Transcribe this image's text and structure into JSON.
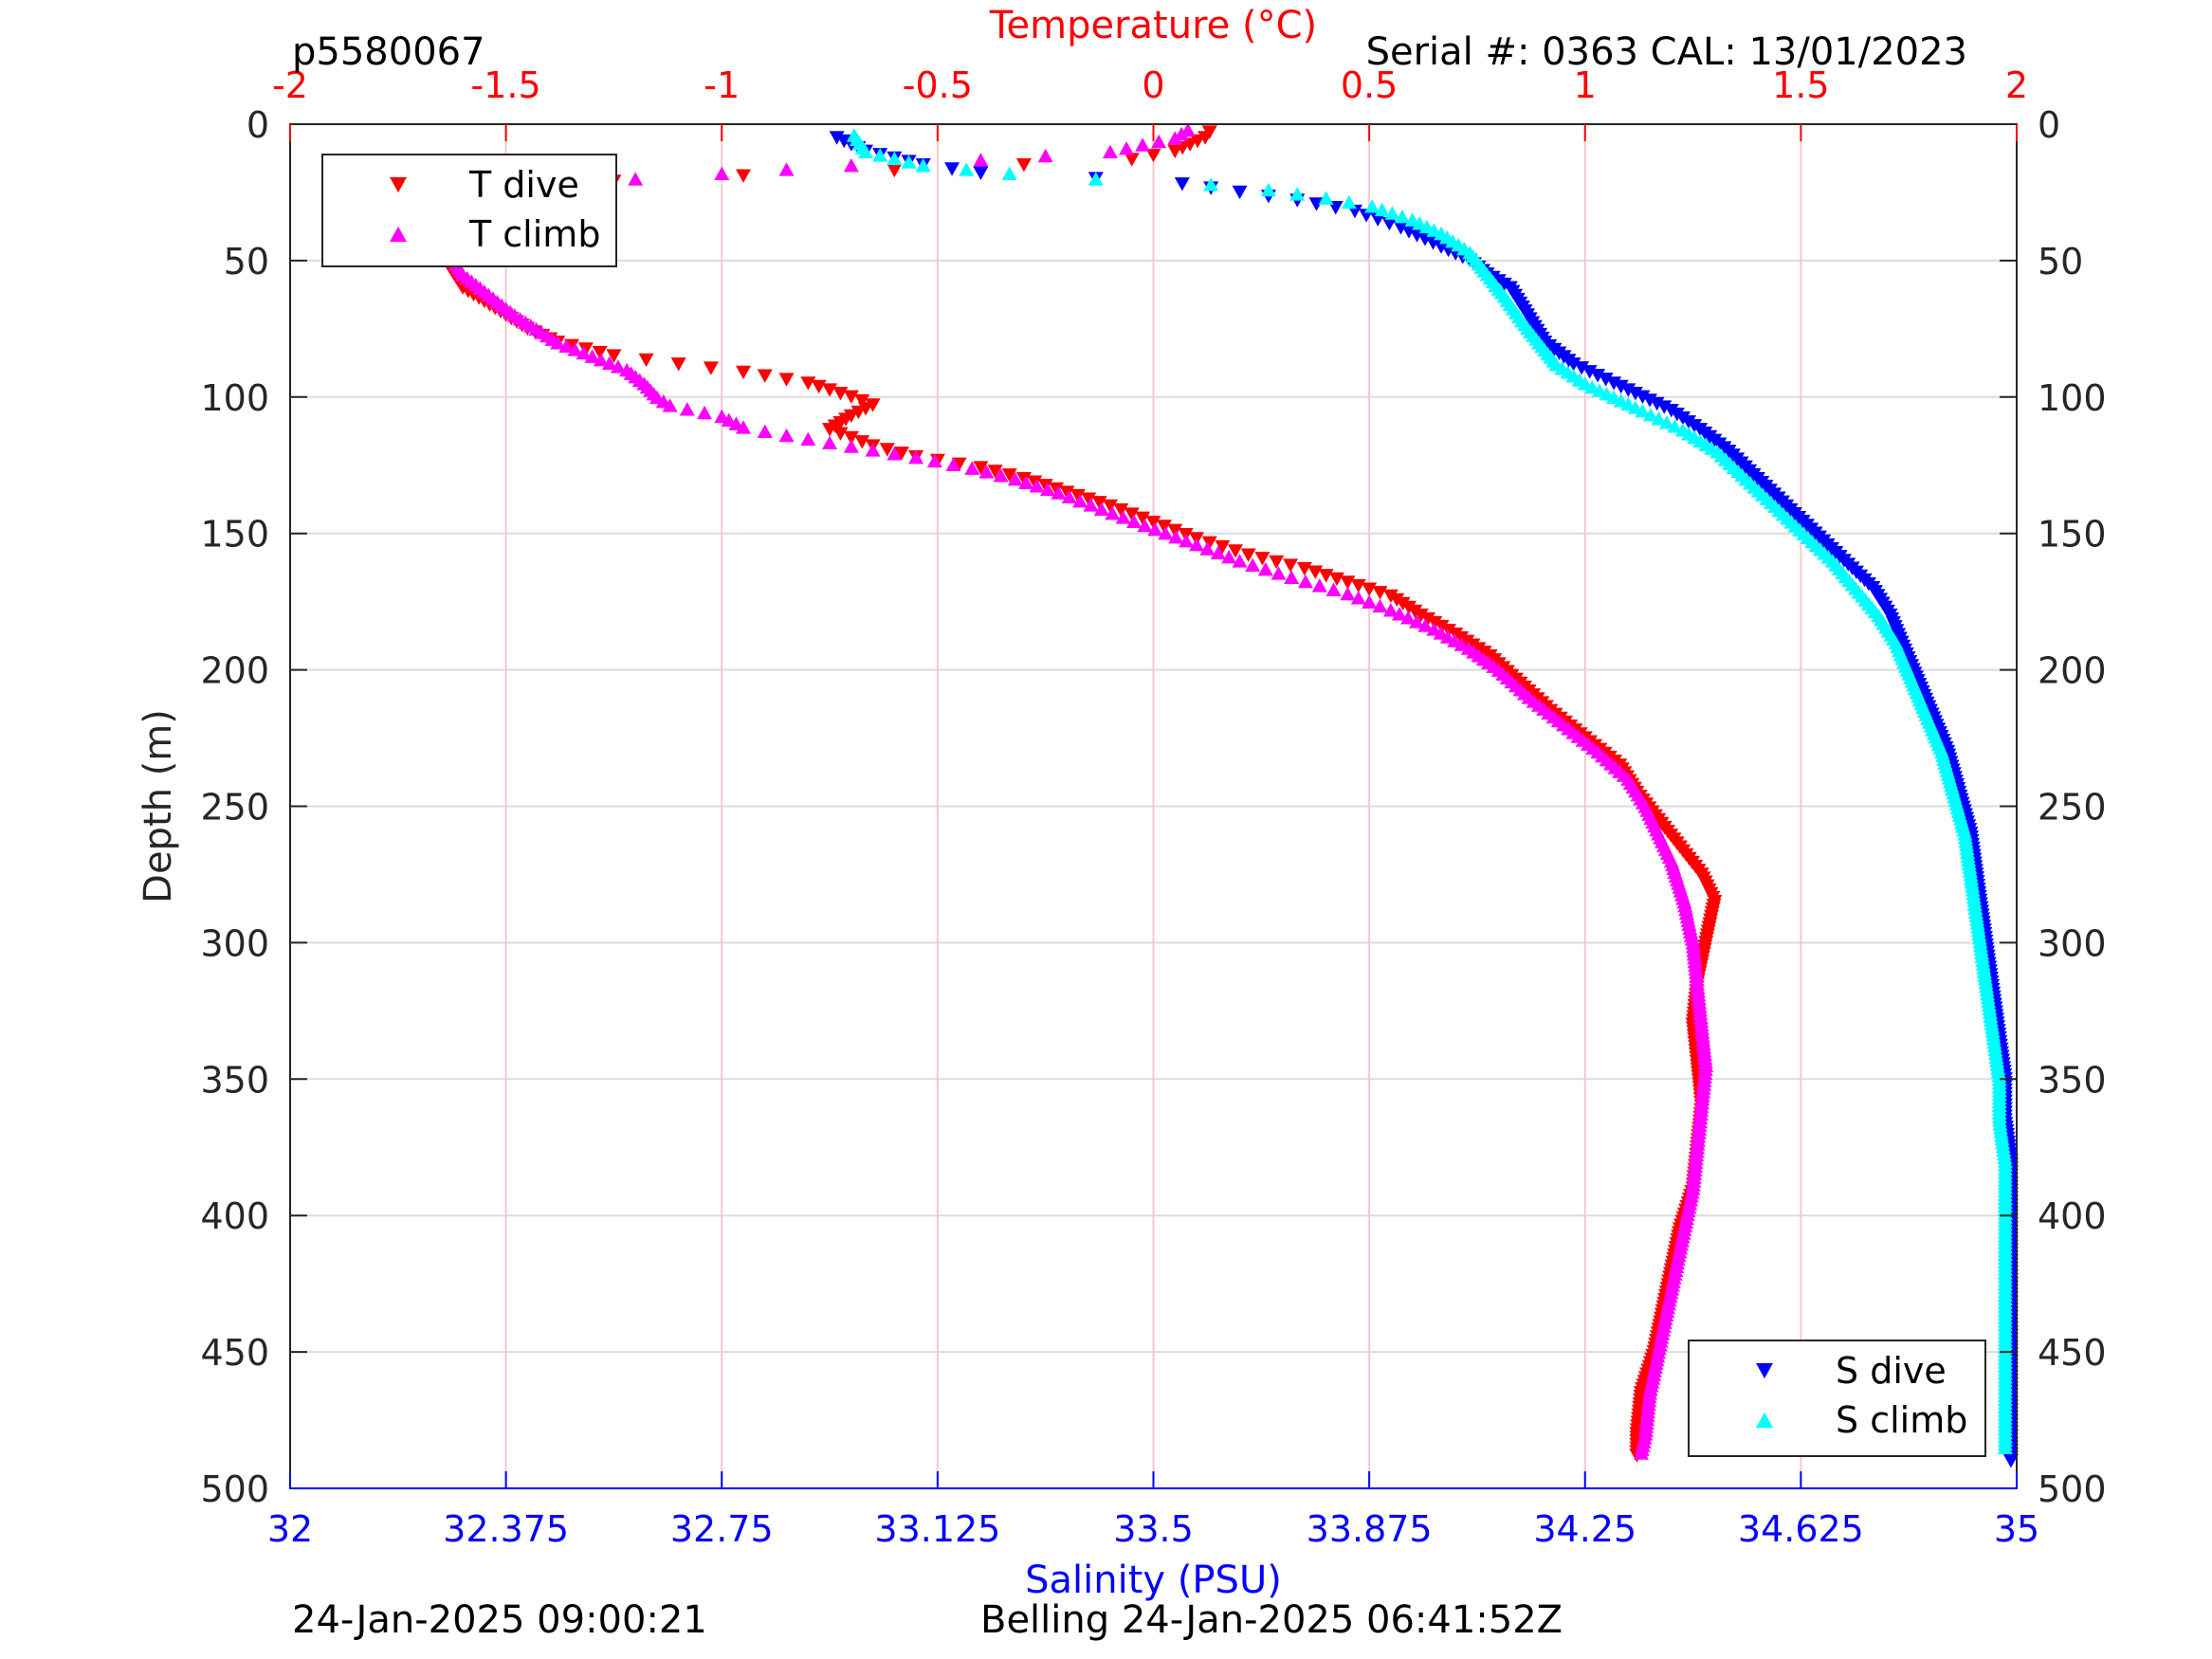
{
  "header": {
    "left": "p5580067",
    "right": "Serial #: 0363  CAL: 13/01/2023"
  },
  "footer": {
    "left": "24-Jan-2025 09:00:21",
    "center": "Belling 24-Jan-2025 06:41:52Z"
  },
  "chart_data": {
    "type": "scatter",
    "y_axis": {
      "label": "Depth (m)",
      "range": [
        0,
        500
      ],
      "reversed": true,
      "ticks": [
        "0",
        "50",
        "100",
        "150",
        "200",
        "250",
        "300",
        "350",
        "400",
        "450",
        "500"
      ],
      "mirrored_right": true
    },
    "temperature_axis": {
      "label": "Temperature (°C)",
      "position": "top",
      "color": "#ff0000",
      "range": [
        -2,
        2
      ],
      "ticks": [
        "-2",
        "-1.5",
        "-1",
        "-0.5",
        "0",
        "0.5",
        "1",
        "1.5",
        "2"
      ]
    },
    "salinity_axis": {
      "label": "Salinity (PSU)",
      "position": "bottom",
      "color": "#0000ff",
      "range": [
        32,
        35
      ],
      "ticks": [
        "32",
        "32.375",
        "32.75",
        "33.125",
        "33.5",
        "33.875",
        "34.25",
        "34.625",
        "35"
      ]
    },
    "grid": true,
    "legends": [
      {
        "placement": "top-left",
        "entries": [
          {
            "series": "T dive",
            "label": "T dive"
          },
          {
            "series": "T climb",
            "label": "T climb"
          }
        ]
      },
      {
        "placement": "bottom-right",
        "entries": [
          {
            "series": "S dive",
            "label": "S dive"
          },
          {
            "series": "S climb",
            "label": "S climb"
          }
        ]
      }
    ],
    "series": [
      {
        "name": "T dive",
        "axis": "temperature",
        "color": "#ff0000",
        "marker": "triangle-down",
        "points": [
          [
            0.13,
            3
          ],
          [
            0.12,
            5
          ],
          [
            0.05,
            10
          ],
          [
            -0.05,
            13
          ],
          [
            -0.3,
            15
          ],
          [
            -0.6,
            17
          ],
          [
            -0.95,
            19
          ],
          [
            -1.25,
            21
          ],
          [
            -1.4,
            23
          ],
          [
            -1.5,
            26
          ],
          [
            -1.58,
            30
          ],
          [
            -1.63,
            35
          ],
          [
            -1.65,
            40
          ],
          [
            -1.65,
            45
          ],
          [
            -1.64,
            50
          ],
          [
            -1.62,
            55
          ],
          [
            -1.6,
            60
          ],
          [
            -1.55,
            65
          ],
          [
            -1.5,
            70
          ],
          [
            -1.45,
            75
          ],
          [
            -1.38,
            80
          ],
          [
            -1.25,
            85
          ],
          [
            -1.1,
            88
          ],
          [
            -0.95,
            91
          ],
          [
            -0.8,
            95
          ],
          [
            -0.7,
            100
          ],
          [
            -0.65,
            103
          ],
          [
            -0.7,
            107
          ],
          [
            -0.75,
            112
          ],
          [
            -0.65,
            118
          ],
          [
            -0.55,
            122
          ],
          [
            -0.4,
            126
          ],
          [
            -0.3,
            130
          ],
          [
            -0.2,
            135
          ],
          [
            -0.1,
            140
          ],
          [
            0.0,
            146
          ],
          [
            0.1,
            152
          ],
          [
            0.22,
            158
          ],
          [
            0.35,
            163
          ],
          [
            0.45,
            168
          ],
          [
            0.55,
            173
          ],
          [
            0.62,
            180
          ],
          [
            0.7,
            187
          ],
          [
            0.78,
            195
          ],
          [
            0.85,
            205
          ],
          [
            0.92,
            215
          ],
          [
            1.0,
            225
          ],
          [
            1.08,
            235
          ],
          [
            1.12,
            245
          ],
          [
            1.17,
            255
          ],
          [
            1.22,
            265
          ],
          [
            1.27,
            275
          ],
          [
            1.3,
            285
          ],
          [
            1.28,
            300
          ],
          [
            1.26,
            315
          ],
          [
            1.25,
            330
          ],
          [
            1.26,
            345
          ],
          [
            1.27,
            360
          ],
          [
            1.26,
            375
          ],
          [
            1.25,
            390
          ],
          [
            1.22,
            405
          ],
          [
            1.2,
            420
          ],
          [
            1.18,
            435
          ],
          [
            1.16,
            450
          ],
          [
            1.13,
            465
          ],
          [
            1.12,
            480
          ],
          [
            1.12,
            488
          ]
        ]
      },
      {
        "name": "T climb",
        "axis": "temperature",
        "color": "#ff00ff",
        "marker": "triangle-up",
        "points": [
          [
            0.08,
            2
          ],
          [
            0.05,
            5
          ],
          [
            -0.1,
            10
          ],
          [
            -0.4,
            13
          ],
          [
            -0.7,
            15
          ],
          [
            -1.0,
            18
          ],
          [
            -1.2,
            20
          ],
          [
            -1.35,
            22
          ],
          [
            -1.48,
            26
          ],
          [
            -1.57,
            30
          ],
          [
            -1.62,
            35
          ],
          [
            -1.64,
            40
          ],
          [
            -1.64,
            45
          ],
          [
            -1.62,
            50
          ],
          [
            -1.6,
            55
          ],
          [
            -1.56,
            60
          ],
          [
            -1.52,
            65
          ],
          [
            -1.48,
            70
          ],
          [
            -1.43,
            75
          ],
          [
            -1.38,
            80
          ],
          [
            -1.3,
            85
          ],
          [
            -1.22,
            90
          ],
          [
            -1.18,
            95
          ],
          [
            -1.15,
            100
          ],
          [
            -1.12,
            103
          ],
          [
            -1.0,
            107
          ],
          [
            -0.95,
            111
          ],
          [
            -0.85,
            114
          ],
          [
            -0.7,
            118
          ],
          [
            -0.55,
            122
          ],
          [
            -0.42,
            126
          ],
          [
            -0.32,
            130
          ],
          [
            -0.22,
            135
          ],
          [
            -0.12,
            141
          ],
          [
            -0.02,
            147
          ],
          [
            0.1,
            154
          ],
          [
            0.2,
            160
          ],
          [
            0.32,
            166
          ],
          [
            0.45,
            172
          ],
          [
            0.55,
            178
          ],
          [
            0.65,
            185
          ],
          [
            0.73,
            192
          ],
          [
            0.8,
            200
          ],
          [
            0.87,
            210
          ],
          [
            0.95,
            220
          ],
          [
            1.03,
            230
          ],
          [
            1.1,
            240
          ],
          [
            1.14,
            250
          ],
          [
            1.17,
            260
          ],
          [
            1.2,
            270
          ],
          [
            1.23,
            285
          ],
          [
            1.25,
            300
          ],
          [
            1.26,
            315
          ],
          [
            1.27,
            330
          ],
          [
            1.28,
            345
          ],
          [
            1.27,
            360
          ],
          [
            1.26,
            375
          ],
          [
            1.25,
            390
          ],
          [
            1.23,
            405
          ],
          [
            1.21,
            420
          ],
          [
            1.19,
            435
          ],
          [
            1.17,
            450
          ],
          [
            1.15,
            465
          ],
          [
            1.14,
            480
          ],
          [
            1.13,
            487
          ]
        ]
      },
      {
        "name": "S dive",
        "axis": "salinity",
        "color": "#0000ff",
        "marker": "triangle-down",
        "points": [
          [
            32.95,
            5
          ],
          [
            33.0,
            10
          ],
          [
            33.1,
            15
          ],
          [
            33.2,
            18
          ],
          [
            33.4,
            20
          ],
          [
            33.55,
            22
          ],
          [
            33.65,
            25
          ],
          [
            33.75,
            28
          ],
          [
            33.85,
            32
          ],
          [
            33.93,
            38
          ],
          [
            34.0,
            45
          ],
          [
            34.05,
            50
          ],
          [
            34.08,
            55
          ],
          [
            34.12,
            60
          ],
          [
            34.15,
            70
          ],
          [
            34.18,
            80
          ],
          [
            34.23,
            88
          ],
          [
            34.3,
            95
          ],
          [
            34.35,
            100
          ],
          [
            34.4,
            105
          ],
          [
            34.45,
            112
          ],
          [
            34.5,
            120
          ],
          [
            34.55,
            130
          ],
          [
            34.6,
            140
          ],
          [
            34.65,
            150
          ],
          [
            34.7,
            160
          ],
          [
            34.75,
            170
          ],
          [
            34.78,
            180
          ],
          [
            34.8,
            190
          ],
          [
            34.82,
            200
          ],
          [
            34.85,
            215
          ],
          [
            34.88,
            230
          ],
          [
            34.9,
            245
          ],
          [
            34.92,
            260
          ],
          [
            34.93,
            275
          ],
          [
            34.94,
            290
          ],
          [
            34.95,
            305
          ],
          [
            34.96,
            320
          ],
          [
            34.97,
            335
          ],
          [
            34.98,
            350
          ],
          [
            34.98,
            365
          ],
          [
            34.99,
            380
          ],
          [
            34.99,
            395
          ],
          [
            34.99,
            410
          ],
          [
            34.99,
            425
          ],
          [
            34.99,
            440
          ],
          [
            34.99,
            455
          ],
          [
            34.99,
            470
          ],
          [
            34.99,
            485
          ],
          [
            34.99,
            490
          ]
        ]
      },
      {
        "name": "S climb",
        "axis": "salinity",
        "color": "#00ffff",
        "marker": "triangle-up",
        "points": [
          [
            32.98,
            4
          ],
          [
            33.0,
            10
          ],
          [
            33.1,
            15
          ],
          [
            33.25,
            18
          ],
          [
            33.4,
            20
          ],
          [
            33.6,
            22
          ],
          [
            33.7,
            24
          ],
          [
            33.8,
            27
          ],
          [
            33.88,
            30
          ],
          [
            33.95,
            35
          ],
          [
            34.0,
            40
          ],
          [
            34.05,
            47
          ],
          [
            34.08,
            55
          ],
          [
            34.11,
            63
          ],
          [
            34.14,
            72
          ],
          [
            34.17,
            80
          ],
          [
            34.2,
            88
          ],
          [
            34.25,
            95
          ],
          [
            34.3,
            100
          ],
          [
            34.35,
            105
          ],
          [
            34.42,
            112
          ],
          [
            34.48,
            120
          ],
          [
            34.53,
            130
          ],
          [
            34.58,
            140
          ],
          [
            34.63,
            150
          ],
          [
            34.68,
            160
          ],
          [
            34.72,
            170
          ],
          [
            34.76,
            180
          ],
          [
            34.79,
            190
          ],
          [
            34.81,
            200
          ],
          [
            34.84,
            215
          ],
          [
            34.87,
            230
          ],
          [
            34.89,
            245
          ],
          [
            34.91,
            260
          ],
          [
            34.92,
            275
          ],
          [
            34.93,
            290
          ],
          [
            34.94,
            305
          ],
          [
            34.95,
            320
          ],
          [
            34.96,
            335
          ],
          [
            34.97,
            350
          ],
          [
            34.97,
            365
          ],
          [
            34.98,
            380
          ],
          [
            34.98,
            395
          ],
          [
            34.98,
            410
          ],
          [
            34.98,
            425
          ],
          [
            34.98,
            440
          ],
          [
            34.98,
            455
          ],
          [
            34.98,
            470
          ],
          [
            34.98,
            485
          ]
        ]
      }
    ]
  }
}
